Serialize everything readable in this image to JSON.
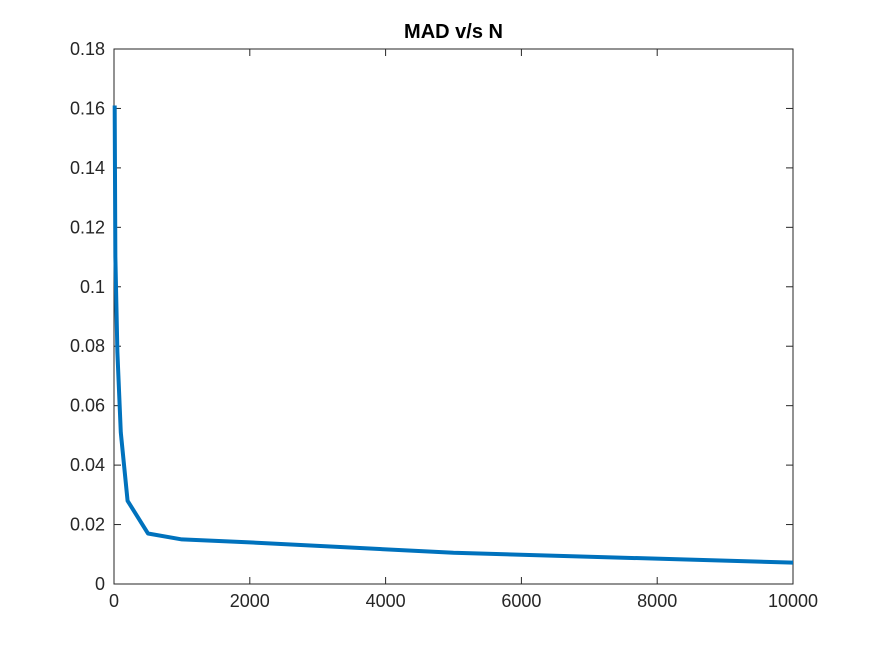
{
  "chart_data": {
    "type": "line",
    "title": "MAD v/s N",
    "xlabel": "",
    "ylabel": "",
    "xlim": [
      0,
      10000
    ],
    "ylim": [
      0,
      0.18
    ],
    "x_ticks": [
      0,
      2000,
      4000,
      6000,
      8000,
      10000
    ],
    "x_tick_labels": [
      "0",
      "2000",
      "4000",
      "6000",
      "8000",
      "10000"
    ],
    "y_ticks": [
      0,
      0.02,
      0.04,
      0.06,
      0.08,
      0.1,
      0.12,
      0.14,
      0.16,
      0.18
    ],
    "y_tick_labels": [
      "0",
      "0.02",
      "0.04",
      "0.06",
      "0.08",
      "0.1",
      "0.12",
      "0.14",
      "0.16",
      "0.18"
    ],
    "grid": false,
    "series": [
      {
        "name": "MAD",
        "color": "#0072BD",
        "x": [
          10,
          20,
          50,
          100,
          200,
          500,
          1000,
          2000,
          5000,
          10000
        ],
        "y": [
          0.161,
          0.11,
          0.078,
          0.051,
          0.028,
          0.017,
          0.015,
          0.014,
          0.0105,
          0.0072
        ]
      }
    ]
  },
  "colors": {
    "axis": "#262626",
    "background": "#ffffff",
    "line": "#0072BD"
  }
}
